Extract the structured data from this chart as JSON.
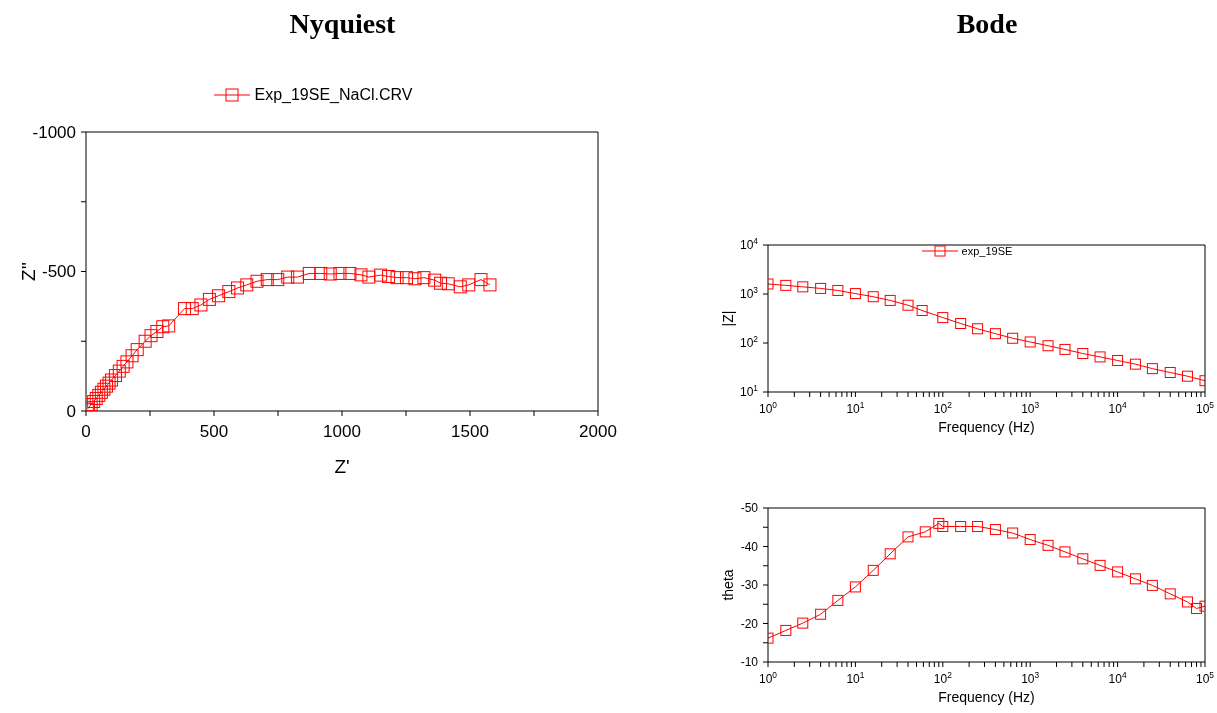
{
  "chart_data": [
    {
      "type": "line",
      "title": "Nyquiest",
      "xlabel": "Z'",
      "ylabel": "Z''",
      "xlim": [
        0,
        2000
      ],
      "ylim": [
        0,
        -1000
      ],
      "xticks": [
        0,
        {
          "value": 250,
          "label": null
        },
        500,
        {
          "value": 750,
          "label": null
        },
        1000,
        {
          "value": 1250,
          "label": null
        },
        1500,
        {
          "value": 1750,
          "label": null
        },
        2000
      ],
      "yticks": [
        0,
        {
          "value": -250,
          "label": null
        },
        -500,
        {
          "value": -750,
          "label": null
        },
        -1000
      ],
      "marker": "square",
      "legend": "top",
      "series": [
        {
          "name": "Exp_19SE_NaCl.CRV",
          "color": "#ff0000",
          "x": [
            5,
            10,
            20,
            30,
            40,
            50,
            60,
            70,
            80,
            90,
            100,
            115,
            130,
            145,
            160,
            180,
            200,
            231,
            254,
            277,
            300,
            323,
            385,
            415,
            449,
            482,
            518,
            558,
            592,
            628,
            668,
            708,
            749,
            788,
            826,
            872,
            917,
            954,
            992,
            1031,
            1074,
            1105,
            1151,
            1182,
            1215,
            1252,
            1285,
            1320,
            1362,
            1385,
            1415,
            1462,
            1495,
            1543,
            1578
          ],
          "values": [
            -6,
            -12,
            -23,
            -34,
            -45,
            -56,
            -67,
            -78,
            -89,
            -100,
            -111,
            -127,
            -143,
            -160,
            -176,
            -198,
            -220,
            -250,
            -270,
            -285,
            -302,
            -305,
            -367,
            -367,
            -380,
            -400,
            -413,
            -428,
            -441,
            -452,
            -465,
            -471,
            -471,
            -480,
            -480,
            -493,
            -493,
            -491,
            -493,
            -493,
            -488,
            -480,
            -487,
            -482,
            -478,
            -478,
            -474,
            -478,
            -469,
            -458,
            -456,
            -445,
            -452,
            -471,
            -452
          ]
        }
      ]
    },
    {
      "type": "line",
      "title": "Bode",
      "xlabel": "Frequency (Hz)",
      "ylabel": "|Z|",
      "log": "xy",
      "xlim": [
        1,
        100000
      ],
      "ylim": [
        10,
        10000
      ],
      "xticks": [
        {
          "value": 1,
          "label": "10$^{0}$"
        },
        {
          "value": 2,
          "label": null
        },
        {
          "value": 3,
          "label": null
        },
        {
          "value": 4,
          "label": null
        },
        {
          "value": 5,
          "label": null
        },
        {
          "value": 6,
          "label": null
        },
        {
          "value": 7,
          "label": null
        },
        {
          "value": 8,
          "label": null
        },
        {
          "value": 9,
          "label": null
        },
        {
          "value": 10,
          "label": "10$^{1}$"
        },
        {
          "value": 20,
          "label": null
        },
        {
          "value": 30,
          "label": null
        },
        {
          "value": 40,
          "label": null
        },
        {
          "value": 50,
          "label": null
        },
        {
          "value": 60,
          "label": null
        },
        {
          "value": 70,
          "label": null
        },
        {
          "value": 80,
          "label": null
        },
        {
          "value": 90,
          "label": null
        },
        {
          "value": 100,
          "label": "10$^{2}$"
        },
        {
          "value": 200,
          "label": null
        },
        {
          "value": 300,
          "label": null
        },
        {
          "value": 400,
          "label": null
        },
        {
          "value": 500,
          "label": null
        },
        {
          "value": 600,
          "label": null
        },
        {
          "value": 700,
          "label": null
        },
        {
          "value": 800,
          "label": null
        },
        {
          "value": 900,
          "label": null
        },
        {
          "value": 1000,
          "label": "10$^{3}$"
        },
        {
          "value": 2000,
          "label": null
        },
        {
          "value": 3000,
          "label": null
        },
        {
          "value": 4000,
          "label": null
        },
        {
          "value": 5000,
          "label": null
        },
        {
          "value": 6000,
          "label": null
        },
        {
          "value": 7000,
          "label": null
        },
        {
          "value": 8000,
          "label": null
        },
        {
          "value": 9000,
          "label": null
        },
        {
          "value": 10000,
          "label": "10$^{4}$"
        },
        {
          "value": 20000,
          "label": null
        },
        {
          "value": 30000,
          "label": null
        },
        {
          "value": 40000,
          "label": null
        },
        {
          "value": 50000,
          "label": null
        },
        {
          "value": 60000,
          "label": null
        },
        {
          "value": 70000,
          "label": null
        },
        {
          "value": 80000,
          "label": null
        },
        {
          "value": 90000,
          "label": null
        },
        {
          "value": 100000,
          "label": "10$^{5}$"
        }
      ],
      "yticks": [
        {
          "value": 10,
          "label": "10$^{1}$"
        },
        {
          "value": 100,
          "label": "10$^{2}$"
        },
        {
          "value": 1000,
          "label": "10$^{3}$"
        },
        {
          "value": 10000,
          "label": "10$^{4}$"
        }
      ],
      "marker": "square",
      "legend": "top",
      "series": [
        {
          "name": "exp_19SE",
          "color": "#ff0000",
          "x": [
            1,
            1.6,
            2.5,
            4,
            6.3,
            10,
            16,
            25,
            40,
            58,
            100,
            160,
            250,
            400,
            630,
            1000,
            1600,
            2500,
            4000,
            6300,
            10000,
            16000,
            25000,
            40000,
            63000,
            100000
          ],
          "values": [
            1600,
            1500,
            1400,
            1300,
            1180,
            1020,
            880,
            740,
            590,
            460,
            330,
            250,
            195,
            155,
            125,
            105,
            88,
            74,
            61,
            52,
            44,
            37,
            30,
            25,
            21,
            17
          ]
        }
      ]
    },
    {
      "type": "line",
      "xlabel": "Frequency (Hz)",
      "ylabel": "theta",
      "log": "x",
      "xlim": [
        1,
        100000
      ],
      "ylim": [
        -10,
        -50
      ],
      "xticks": [
        {
          "value": 1,
          "label": "10$^{0}$"
        },
        {
          "value": 2,
          "label": null
        },
        {
          "value": 3,
          "label": null
        },
        {
          "value": 4,
          "label": null
        },
        {
          "value": 5,
          "label": null
        },
        {
          "value": 6,
          "label": null
        },
        {
          "value": 7,
          "label": null
        },
        {
          "value": 8,
          "label": null
        },
        {
          "value": 9,
          "label": null
        },
        {
          "value": 10,
          "label": "10$^{1}$"
        },
        {
          "value": 20,
          "label": null
        },
        {
          "value": 30,
          "label": null
        },
        {
          "value": 40,
          "label": null
        },
        {
          "value": 50,
          "label": null
        },
        {
          "value": 60,
          "label": null
        },
        {
          "value": 70,
          "label": null
        },
        {
          "value": 80,
          "label": null
        },
        {
          "value": 90,
          "label": null
        },
        {
          "value": 100,
          "label": "10$^{2}$"
        },
        {
          "value": 200,
          "label": null
        },
        {
          "value": 300,
          "label": null
        },
        {
          "value": 400,
          "label": null
        },
        {
          "value": 500,
          "label": null
        },
        {
          "value": 600,
          "label": null
        },
        {
          "value": 700,
          "label": null
        },
        {
          "value": 800,
          "label": null
        },
        {
          "value": 900,
          "label": null
        },
        {
          "value": 1000,
          "label": "10$^{3}$"
        },
        {
          "value": 2000,
          "label": null
        },
        {
          "value": 3000,
          "label": null
        },
        {
          "value": 4000,
          "label": null
        },
        {
          "value": 5000,
          "label": null
        },
        {
          "value": 6000,
          "label": null
        },
        {
          "value": 7000,
          "label": null
        },
        {
          "value": 8000,
          "label": null
        },
        {
          "value": 9000,
          "label": null
        },
        {
          "value": 10000,
          "label": "10$^{4}$"
        },
        {
          "value": 20000,
          "label": null
        },
        {
          "value": 30000,
          "label": null
        },
        {
          "value": 40000,
          "label": null
        },
        {
          "value": 50000,
          "label": null
        },
        {
          "value": 60000,
          "label": null
        },
        {
          "value": 70000,
          "label": null
        },
        {
          "value": 80000,
          "label": null
        },
        {
          "value": 90000,
          "label": null
        },
        {
          "value": 100000,
          "label": "10$^{5}$"
        }
      ],
      "yticks": [
        -10,
        {
          "value": -15,
          "label": null
        },
        -20,
        {
          "value": -25,
          "label": null
        },
        -30,
        {
          "value": -35,
          "label": null
        },
        -40,
        {
          "value": -45,
          "label": null
        },
        -50
      ],
      "marker": "square",
      "series": [
        {
          "color": "#ff0000",
          "x": [
            1,
            1.6,
            2.5,
            4,
            6.3,
            10,
            16,
            25,
            40,
            63,
            90,
            100,
            160,
            250,
            400,
            630,
            1000,
            1600,
            2500,
            4000,
            6300,
            10000,
            16000,
            25000,
            40000,
            63000,
            80000,
            100000
          ],
          "values": [
            -16.2,
            -18.2,
            -20.1,
            -22.4,
            -26,
            -29.5,
            -33.8,
            -38.1,
            -42.5,
            -43.8,
            -46,
            -45.2,
            -45.2,
            -45.2,
            -44.4,
            -43.5,
            -41.8,
            -40.3,
            -38.6,
            -36.8,
            -35.1,
            -33.4,
            -31.6,
            -29.9,
            -27.7,
            -25.6,
            -23.9,
            -24.5
          ]
        }
      ]
    }
  ]
}
